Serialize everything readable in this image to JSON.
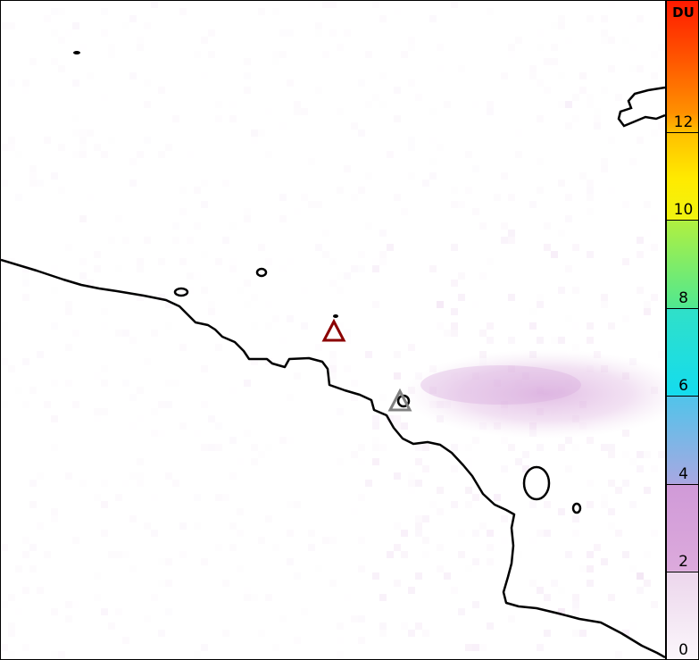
{
  "colorbar": {
    "unit": "DU",
    "ticks": [
      "0",
      "2",
      "4",
      "6",
      "8",
      "10",
      "12"
    ],
    "range": [
      0,
      15
    ]
  },
  "markers": [
    {
      "name": "volcano-marker-active",
      "color": "#8b0000",
      "shape": "triangle-outline"
    },
    {
      "name": "volcano-marker",
      "color": "#808080",
      "shape": "triangle-outline"
    }
  ],
  "plume_color": "#d8a8dc"
}
